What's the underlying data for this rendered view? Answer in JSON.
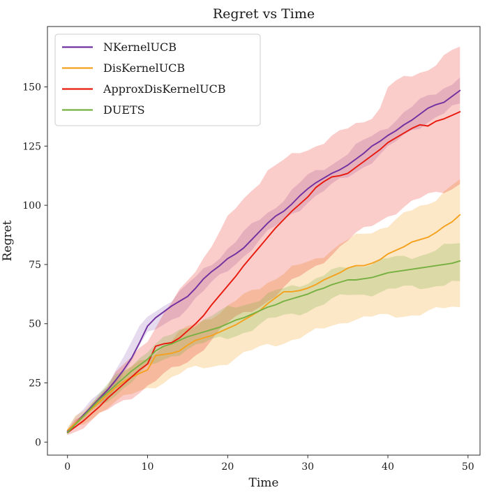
{
  "figure": {
    "background": "#ffffff",
    "spine_color": "#2b2b2b",
    "text_color": "#1a1a1a"
  },
  "chart_data": {
    "type": "line",
    "title": "Regret vs Time",
    "xlabel": "Time",
    "ylabel": "Regret",
    "xlim": [
      -2.5,
      51.5
    ],
    "ylim": [
      -5.5,
      175.5
    ],
    "xticks": [
      0,
      10,
      20,
      30,
      40,
      50
    ],
    "yticks": [
      0,
      25,
      50,
      75,
      100,
      125,
      150
    ],
    "grid": false,
    "legend_position": "upper left",
    "x": [
      0,
      1,
      2,
      3,
      4,
      5,
      6,
      7,
      8,
      9,
      10,
      11,
      12,
      13,
      14,
      15,
      16,
      17,
      18,
      19,
      20,
      21,
      22,
      23,
      24,
      25,
      26,
      27,
      28,
      29,
      30,
      31,
      32,
      33,
      34,
      35,
      36,
      37,
      38,
      39,
      40,
      41,
      42,
      43,
      44,
      45,
      46,
      47,
      48,
      49
    ],
    "series": [
      {
        "name": "NKernelUCB",
        "color": "#7030a0",
        "band_alpha": 0.18,
        "values": [
          4.5,
          8,
          11.5,
          15,
          18.5,
          22,
          26,
          30.5,
          35.5,
          42,
          49,
          52.5,
          55,
          57.5,
          59.5,
          61.5,
          65,
          69,
          72,
          74.5,
          77.5,
          79.5,
          82,
          85.5,
          89,
          92.5,
          95.5,
          97.5,
          100.5,
          104,
          107,
          109.5,
          111.5,
          113.5,
          115,
          117,
          119.5,
          122,
          125,
          127,
          129.5,
          131.5,
          134,
          136,
          138.5,
          141,
          142.5,
          143.5,
          146,
          148.5
        ],
        "band_upper": [
          [
            0,
            5.5
          ],
          [
            5,
            25
          ],
          [
            10,
            53
          ],
          [
            15,
            66
          ],
          [
            20,
            82
          ],
          [
            25,
            97
          ],
          [
            30,
            112
          ],
          [
            35,
            122
          ],
          [
            40,
            134
          ],
          [
            45,
            146
          ],
          [
            49,
            154
          ]
        ],
        "band_lower": [
          [
            0,
            3.5
          ],
          [
            5,
            19
          ],
          [
            10,
            45
          ],
          [
            15,
            57
          ],
          [
            20,
            73
          ],
          [
            25,
            88
          ],
          [
            30,
            102
          ],
          [
            35,
            112
          ],
          [
            40,
            124
          ],
          [
            45,
            136
          ],
          [
            49,
            143
          ]
        ]
      },
      {
        "name": "DisKernelUCB",
        "color": "#f5a11e",
        "band_alpha": 0.25,
        "values": [
          5,
          8,
          11,
          14,
          17,
          20,
          23,
          25.5,
          27.5,
          29,
          30.5,
          36.5,
          37,
          37.5,
          38.5,
          41,
          43,
          44,
          45,
          46.5,
          48,
          49.5,
          51.5,
          53.5,
          55.5,
          58.5,
          61,
          63.5,
          63.5,
          64,
          65,
          66.5,
          68.5,
          70,
          71.5,
          73.5,
          74.5,
          74.5,
          75.5,
          77,
          79.5,
          81,
          82.5,
          84.5,
          85.5,
          86.5,
          88.5,
          91,
          93,
          96
        ],
        "band_upper": [
          [
            0,
            6
          ],
          [
            5,
            24
          ],
          [
            10,
            36
          ],
          [
            15,
            48
          ],
          [
            20,
            57
          ],
          [
            25,
            68
          ],
          [
            30,
            76
          ],
          [
            35,
            85
          ],
          [
            40,
            92
          ],
          [
            45,
            101
          ],
          [
            49,
            111
          ]
        ],
        "band_lower": [
          [
            0,
            4
          ],
          [
            5,
            15
          ],
          [
            10,
            23
          ],
          [
            15,
            30
          ],
          [
            20,
            34
          ],
          [
            25,
            41
          ],
          [
            30,
            45
          ],
          [
            35,
            52
          ],
          [
            40,
            53
          ],
          [
            45,
            55
          ],
          [
            49,
            57
          ]
        ]
      },
      {
        "name": "ApproxDisKernelUCB",
        "color": "#e8190c",
        "band_alpha": 0.22,
        "values": [
          4,
          6.5,
          9,
          12,
          15,
          18.5,
          21.5,
          24.5,
          27.5,
          30.5,
          33,
          40.5,
          41.5,
          42,
          44,
          47,
          50,
          53.5,
          58,
          62,
          66,
          70,
          74.5,
          78.5,
          82.5,
          86.5,
          90.5,
          94,
          97.5,
          100.5,
          103.5,
          107.5,
          110,
          112,
          112.5,
          113.5,
          116,
          118.5,
          121,
          123.5,
          126.5,
          128.5,
          130.5,
          132.5,
          134,
          133.5,
          135.5,
          136.5,
          138,
          139.5
        ],
        "band_upper": [
          [
            0,
            5
          ],
          [
            5,
            24
          ],
          [
            10,
            44
          ],
          [
            15,
            68
          ],
          [
            20,
            94
          ],
          [
            25,
            115
          ],
          [
            30,
            124
          ],
          [
            35,
            132
          ],
          [
            38,
            138
          ],
          [
            39,
            141
          ],
          [
            40,
            150
          ],
          [
            45,
            158
          ],
          [
            49,
            167
          ]
        ],
        "band_lower": [
          [
            0,
            3
          ],
          [
            5,
            13
          ],
          [
            10,
            24
          ],
          [
            15,
            34
          ],
          [
            20,
            50
          ],
          [
            25,
            60
          ],
          [
            30,
            72
          ],
          [
            35,
            85
          ],
          [
            40,
            96
          ],
          [
            45,
            104
          ],
          [
            49,
            109
          ]
        ]
      },
      {
        "name": "DUETS",
        "color": "#76b041",
        "band_alpha": 0.25,
        "values": [
          4,
          7.5,
          11,
          14.5,
          18,
          21,
          24,
          27,
          30,
          32.5,
          35,
          38.5,
          40.5,
          41.5,
          43,
          44.5,
          45.5,
          46.5,
          47.5,
          48.5,
          50,
          51.5,
          52.5,
          54,
          55.5,
          57,
          58,
          59.5,
          60.5,
          61.5,
          62.5,
          64,
          65,
          66.5,
          67.5,
          68.5,
          68.5,
          69,
          69.5,
          70.5,
          71.5,
          72,
          72.5,
          73,
          73.5,
          74,
          74.5,
          75,
          75.5,
          76.5
        ],
        "band_upper": [
          [
            0,
            5
          ],
          [
            5,
            24
          ],
          [
            10,
            39
          ],
          [
            15,
            49
          ],
          [
            20,
            56
          ],
          [
            25,
            62
          ],
          [
            30,
            68
          ],
          [
            35,
            74
          ],
          [
            40,
            77
          ],
          [
            45,
            80
          ],
          [
            49,
            84
          ]
        ],
        "band_lower": [
          [
            0,
            3
          ],
          [
            5,
            18
          ],
          [
            10,
            31
          ],
          [
            15,
            40
          ],
          [
            20,
            44
          ],
          [
            25,
            51
          ],
          [
            30,
            56
          ],
          [
            35,
            62
          ],
          [
            40,
            64
          ],
          [
            45,
            66
          ],
          [
            49,
            68
          ]
        ]
      }
    ]
  }
}
